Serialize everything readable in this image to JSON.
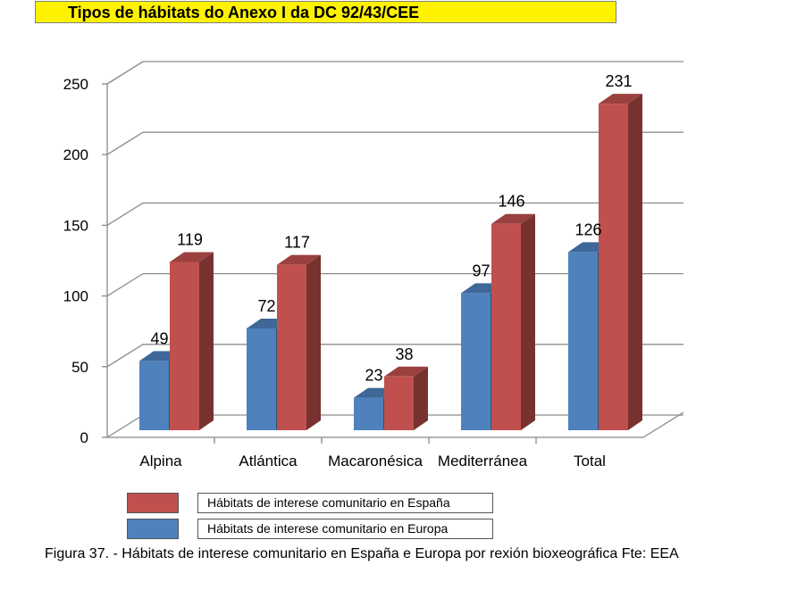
{
  "title": "Tipos de hábitats do Anexo I da DC 92/43/CEE",
  "caption": "Figura 37. - Hábitats de interese comunitario en España e Europa por rexión bioxeográfica Fte: EEA",
  "colors": {
    "europa": "#4f81bd",
    "espana": "#c0504d",
    "title_bg": "#fff200"
  },
  "chart_data": {
    "type": "bar",
    "categories": [
      "Alpina",
      "Atlántica",
      "Macaronésica",
      "Mediterránea",
      "Total"
    ],
    "series": [
      {
        "name": "Hábitats de interese comunitario en Europa",
        "values": [
          49,
          72,
          23,
          97,
          126
        ]
      },
      {
        "name": "Hábitats de interese comunitario en España",
        "values": [
          119,
          117,
          38,
          146,
          231
        ]
      }
    ],
    "ylim": [
      0,
      250
    ],
    "yticks": [
      "0",
      "50",
      "100",
      "150",
      "200",
      "250"
    ],
    "grid": true,
    "legend_position": "bottom",
    "legend_entries": [
      "Hábitats de interese comunitario en España",
      "Hábitats de interese comunitario en Europa"
    ]
  }
}
